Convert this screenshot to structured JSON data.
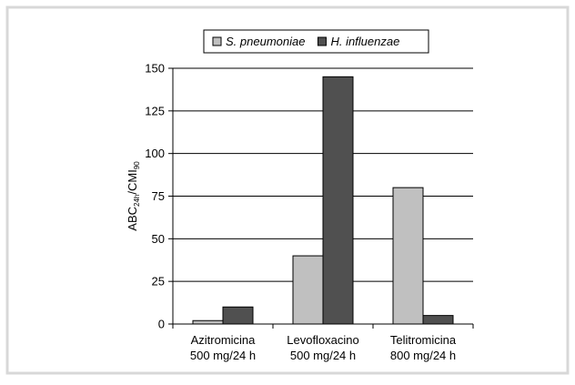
{
  "chart_data": {
    "type": "bar",
    "y_label_parts": [
      "ABC",
      "24h",
      "/CMI",
      "90"
    ],
    "categories": [
      [
        "Azitromicina",
        "500 mg/24 h"
      ],
      [
        "Levofloxacino",
        "500 mg/24 h"
      ],
      [
        "Telitromicina",
        "800 mg/24 h"
      ]
    ],
    "series": [
      {
        "name": "S. pneumoniae",
        "color": "#c0c0c0",
        "values": [
          2,
          40,
          80
        ]
      },
      {
        "name": "H. influenzae",
        "color": "#505050",
        "values": [
          10,
          145,
          5
        ]
      }
    ],
    "ylim": [
      0,
      150
    ],
    "yticks": [
      0,
      25,
      50,
      75,
      100,
      125,
      150
    ],
    "grid": true,
    "legend": "top"
  }
}
